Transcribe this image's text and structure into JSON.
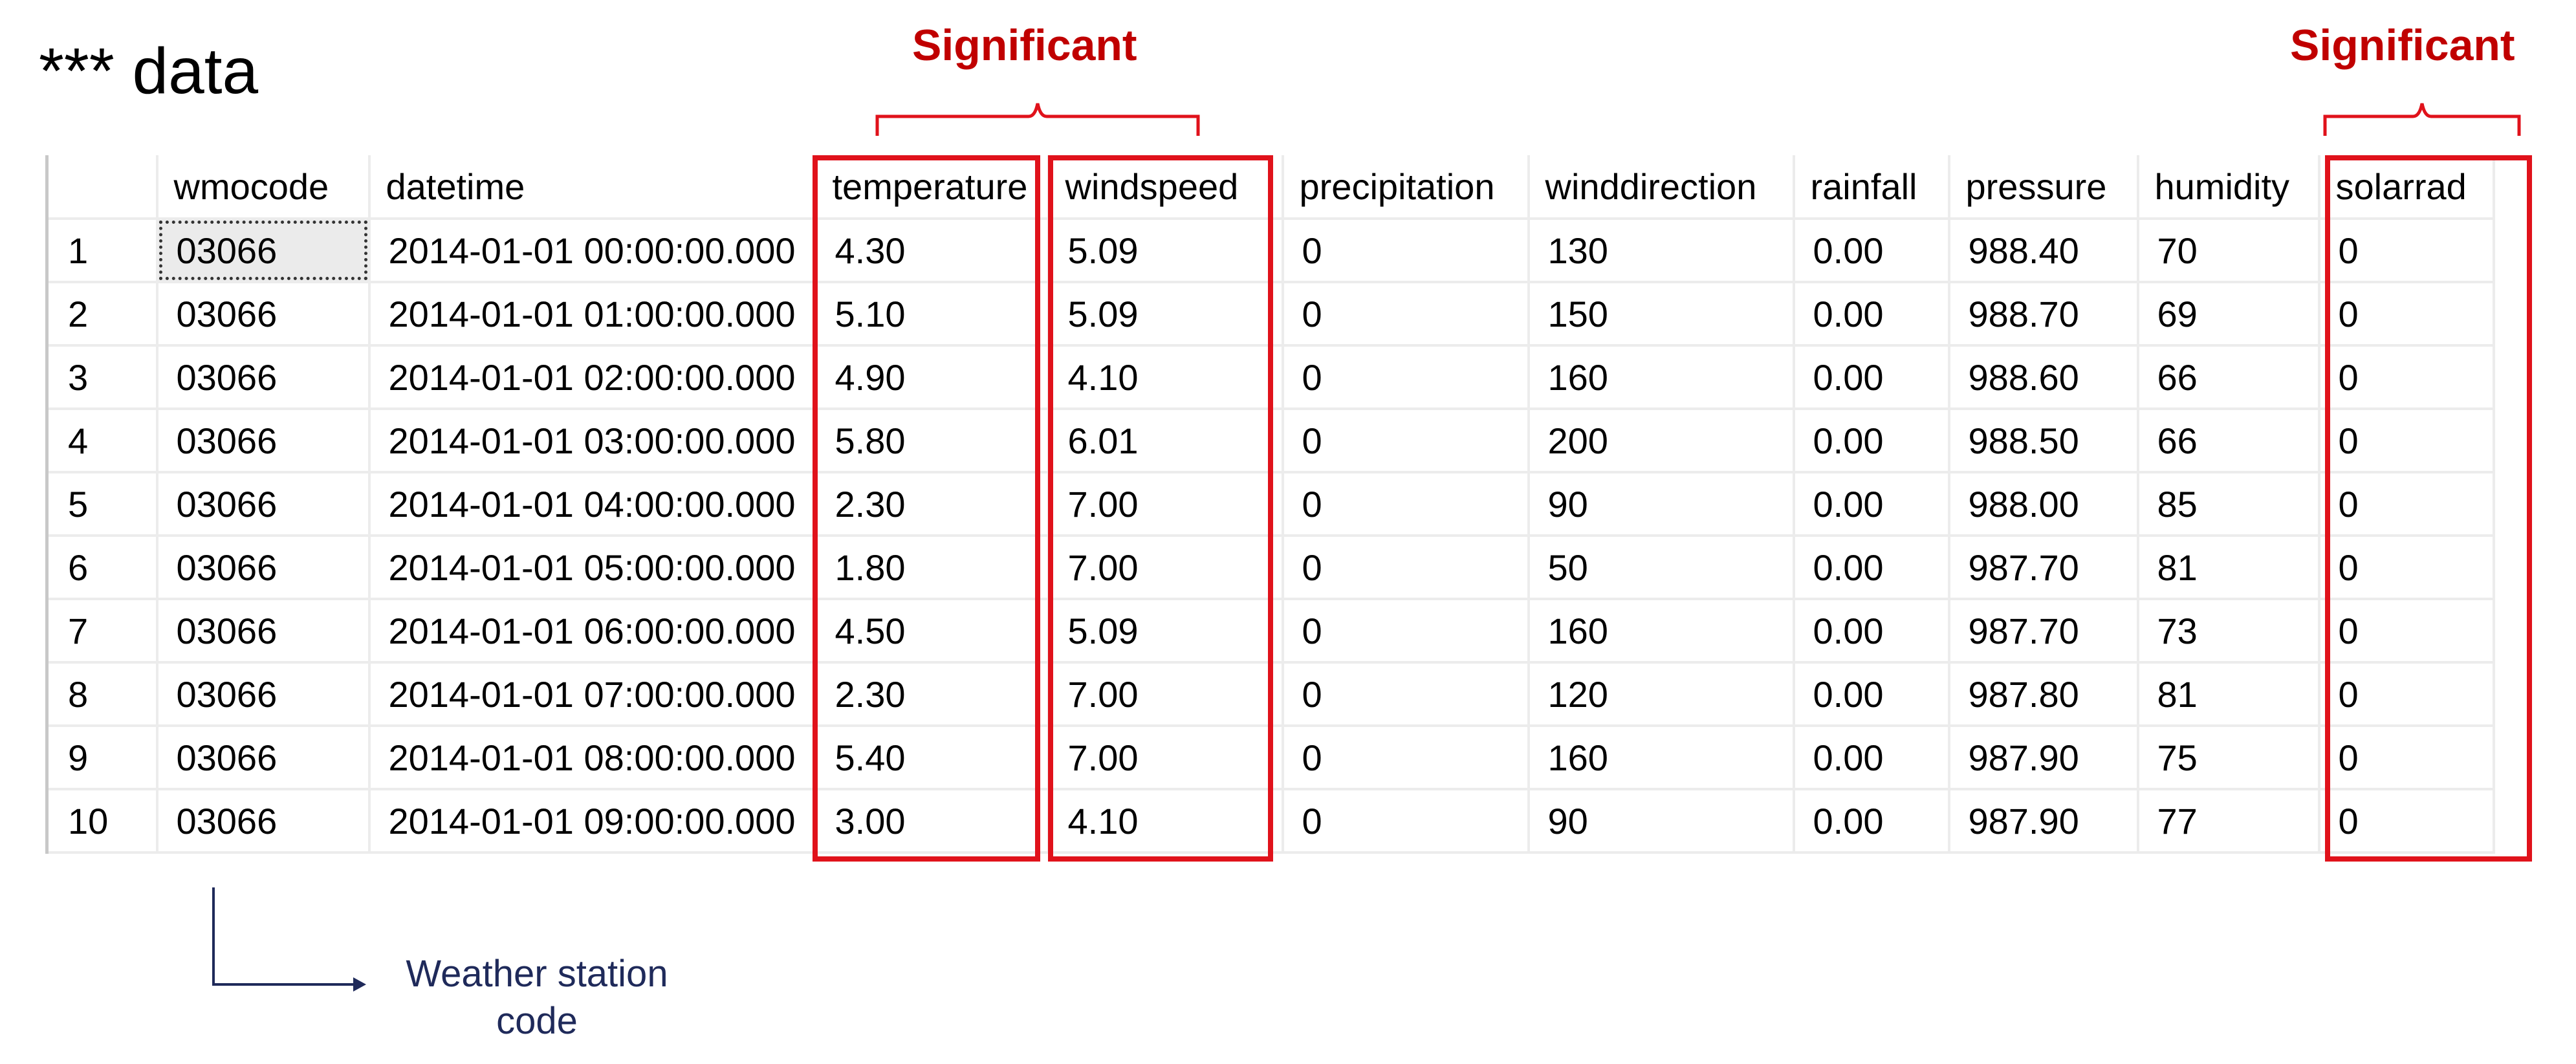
{
  "title": "*** data",
  "annotations": {
    "significant_left": "Significant",
    "significant_right": "Significant",
    "station_note_line1": "Weather station",
    "station_note_line2": "code"
  },
  "colors": {
    "highlight": "#e0121b",
    "annotation_title": "#c00000",
    "note": "#1f2a5a"
  },
  "table": {
    "columns": [
      "",
      "wmocode",
      "datetime",
      "temperature",
      "windspeed",
      "precipitation",
      "winddirection",
      "rainfall",
      "pressure",
      "humidity",
      "solarrad"
    ],
    "rows": [
      [
        "1",
        "03066",
        "2014-01-01 00:00:00.000",
        "4.30",
        "5.09",
        "0",
        "130",
        "0.00",
        "988.40",
        "70",
        "0"
      ],
      [
        "2",
        "03066",
        "2014-01-01 01:00:00.000",
        "5.10",
        "5.09",
        "0",
        "150",
        "0.00",
        "988.70",
        "69",
        "0"
      ],
      [
        "3",
        "03066",
        "2014-01-01 02:00:00.000",
        "4.90",
        "4.10",
        "0",
        "160",
        "0.00",
        "988.60",
        "66",
        "0"
      ],
      [
        "4",
        "03066",
        "2014-01-01 03:00:00.000",
        "5.80",
        "6.01",
        "0",
        "200",
        "0.00",
        "988.50",
        "66",
        "0"
      ],
      [
        "5",
        "03066",
        "2014-01-01 04:00:00.000",
        "2.30",
        "7.00",
        "0",
        "90",
        "0.00",
        "988.00",
        "85",
        "0"
      ],
      [
        "6",
        "03066",
        "2014-01-01 05:00:00.000",
        "1.80",
        "7.00",
        "0",
        "50",
        "0.00",
        "987.70",
        "81",
        "0"
      ],
      [
        "7",
        "03066",
        "2014-01-01 06:00:00.000",
        "4.50",
        "5.09",
        "0",
        "160",
        "0.00",
        "987.70",
        "73",
        "0"
      ],
      [
        "8",
        "03066",
        "2014-01-01 07:00:00.000",
        "2.30",
        "7.00",
        "0",
        "120",
        "0.00",
        "987.80",
        "81",
        "0"
      ],
      [
        "9",
        "03066",
        "2014-01-01 08:00:00.000",
        "5.40",
        "7.00",
        "0",
        "160",
        "0.00",
        "987.90",
        "75",
        "0"
      ],
      [
        "10",
        "03066",
        "2014-01-01 09:00:00.000",
        "3.00",
        "4.10",
        "0",
        "90",
        "0.00",
        "987.90",
        "77",
        "0"
      ]
    ]
  }
}
